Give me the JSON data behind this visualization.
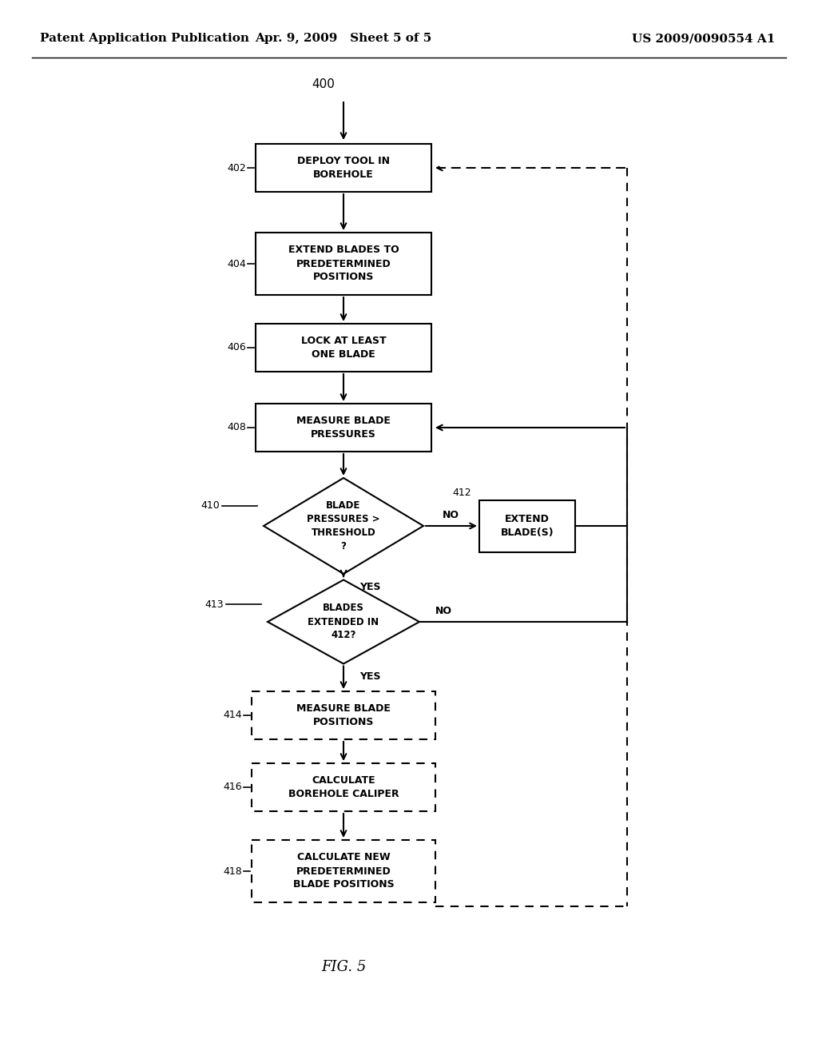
{
  "header_left": "Patent Application Publication",
  "header_mid": "Apr. 9, 2009   Sheet 5 of 5",
  "header_right": "US 2009/0090554 A1",
  "fig_label": "FIG. 5",
  "bg_color": "#ffffff"
}
